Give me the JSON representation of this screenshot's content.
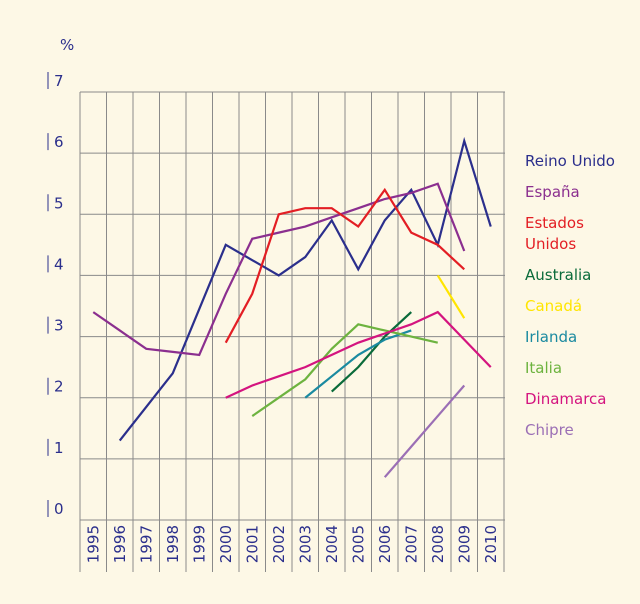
{
  "chart_data": {
    "type": "line",
    "y_axis_label": "%",
    "categories": [
      "1995",
      "1996",
      "1997",
      "1998",
      "1999",
      "2000",
      "2001",
      "2002",
      "2003",
      "2004",
      "2005",
      "2006",
      "2007",
      "2008",
      "2009",
      "2010"
    ],
    "ylim": [
      0,
      7
    ],
    "yticks": [
      0,
      1,
      2,
      3,
      4,
      5,
      6,
      7
    ],
    "grid": true,
    "series": [
      {
        "name": "Reino Unido",
        "color": "#2b2f8c",
        "values": [
          null,
          1.3,
          1.85,
          2.4,
          3.45,
          4.5,
          4.25,
          4.0,
          4.3,
          4.9,
          4.1,
          4.9,
          5.4,
          4.5,
          6.2,
          4.8
        ]
      },
      {
        "name": "España",
        "color": "#8b2f8f",
        "values": [
          3.4,
          3.1,
          2.8,
          2.75,
          2.7,
          3.7,
          4.6,
          4.7,
          4.8,
          4.95,
          5.1,
          5.25,
          5.35,
          5.5,
          4.4,
          null
        ]
      },
      {
        "name": "Estados Unidos",
        "color": "#e31e24",
        "values": [
          null,
          null,
          null,
          null,
          null,
          2.9,
          3.7,
          5.0,
          5.1,
          5.1,
          4.8,
          5.4,
          4.7,
          4.5,
          4.1,
          null
        ]
      },
      {
        "name": "Australia",
        "color": "#0a6b3a",
        "values": [
          null,
          null,
          null,
          null,
          null,
          null,
          null,
          null,
          null,
          2.1,
          2.5,
          3.0,
          3.4,
          null,
          null,
          null
        ]
      },
      {
        "name": "Canadá",
        "color": "#ffe500",
        "values": [
          null,
          null,
          null,
          null,
          null,
          null,
          null,
          null,
          null,
          null,
          null,
          null,
          null,
          4.0,
          3.3,
          null
        ]
      },
      {
        "name": "Irlanda",
        "color": "#1a8aa0",
        "values": [
          null,
          null,
          null,
          null,
          null,
          null,
          null,
          null,
          2.0,
          2.35,
          2.7,
          2.95,
          3.1,
          null,
          null,
          null
        ]
      },
      {
        "name": "Italia",
        "color": "#6db33f",
        "values": [
          null,
          null,
          null,
          null,
          null,
          null,
          1.7,
          2.0,
          2.3,
          2.8,
          3.2,
          3.1,
          3.0,
          2.9,
          null,
          null
        ]
      },
      {
        "name": "Dinamarca",
        "color": "#d4147f",
        "values": [
          null,
          null,
          null,
          null,
          null,
          2.0,
          2.2,
          2.35,
          2.5,
          2.7,
          2.9,
          3.05,
          3.2,
          3.4,
          2.95,
          2.5
        ]
      },
      {
        "name": "Chipre",
        "color": "#9b6fb5",
        "values": [
          null,
          null,
          null,
          null,
          null,
          null,
          null,
          null,
          null,
          null,
          null,
          0.7,
          1.2,
          1.7,
          2.2,
          null
        ]
      }
    ]
  }
}
